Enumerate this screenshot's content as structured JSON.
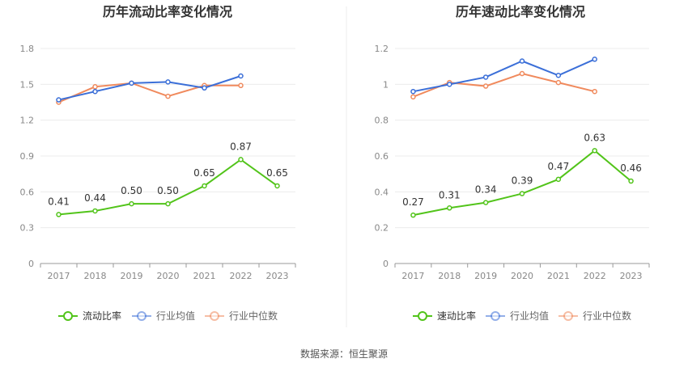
{
  "source_text": "数据来源：恒生聚源",
  "colors": {
    "company": "#52c41a",
    "avg": "#3b6fd8",
    "median": "#f08a5d",
    "grid": "#ececec",
    "axis": "#999999"
  },
  "chart_data": [
    {
      "type": "line",
      "title": "历年流动比率变化情况",
      "categories": [
        "2017",
        "2018",
        "2019",
        "2020",
        "2021",
        "2022",
        "2023"
      ],
      "ylim": [
        0,
        1.8
      ],
      "yticks": [
        0,
        0.3,
        0.6,
        0.9,
        1.2,
        1.5,
        1.8
      ],
      "ytick_labels": [
        "0",
        "0.3",
        "0.6",
        "0.9",
        "1.2",
        "1.5",
        "1.8"
      ],
      "grid": true,
      "legend_position": "bottom",
      "series": [
        {
          "name": "流动比率",
          "key": "company",
          "values": [
            0.41,
            0.44,
            0.5,
            0.5,
            0.65,
            0.87,
            0.65
          ],
          "labels": [
            "0.41",
            "0.44",
            "0.50",
            "0.50",
            "0.65",
            "0.87",
            "0.65"
          ]
        },
        {
          "name": "行业均值",
          "key": "avg",
          "values": [
            1.37,
            1.44,
            1.51,
            1.52,
            1.47,
            1.57,
            null
          ]
        },
        {
          "name": "行业中位数",
          "key": "median",
          "values": [
            1.35,
            1.48,
            1.51,
            1.4,
            1.49,
            1.49,
            null
          ]
        }
      ]
    },
    {
      "type": "line",
      "title": "历年速动比率变化情况",
      "categories": [
        "2017",
        "2018",
        "2019",
        "2020",
        "2021",
        "2022",
        "2023"
      ],
      "ylim": [
        0,
        1.2
      ],
      "yticks": [
        0,
        0.2,
        0.4,
        0.6,
        0.8,
        1.0,
        1.2
      ],
      "ytick_labels": [
        "0",
        "0.2",
        "0.4",
        "0.6",
        "0.8",
        "1",
        "1.2"
      ],
      "grid": true,
      "legend_position": "bottom",
      "series": [
        {
          "name": "速动比率",
          "key": "company",
          "values": [
            0.27,
            0.31,
            0.34,
            0.39,
            0.47,
            0.63,
            0.46
          ],
          "labels": [
            "0.27",
            "0.31",
            "0.34",
            "0.39",
            "0.47",
            "0.63",
            "0.46"
          ]
        },
        {
          "name": "行业均值",
          "key": "avg",
          "values": [
            0.96,
            1.0,
            1.04,
            1.13,
            1.05,
            1.14,
            null
          ]
        },
        {
          "name": "行业中位数",
          "key": "median",
          "values": [
            0.93,
            1.01,
            0.99,
            1.06,
            1.01,
            0.96,
            null
          ]
        }
      ]
    }
  ]
}
